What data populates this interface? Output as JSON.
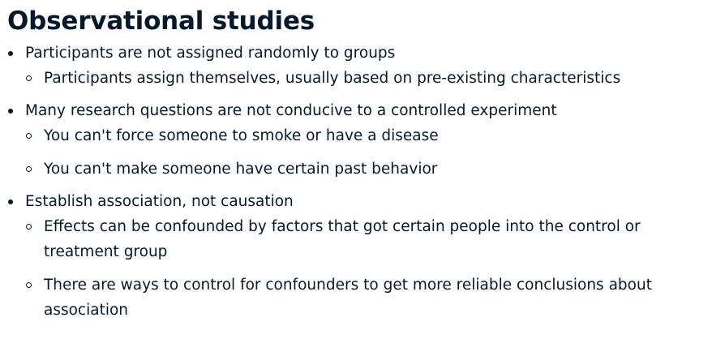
{
  "slide": {
    "title": "Observational studies",
    "bullets": [
      {
        "text": "Participants are not assigned randomly to groups",
        "sub": [
          "Participants assign themselves, usually based on pre-existing characteristics"
        ]
      },
      {
        "text": "Many research questions are not conducive to a controlled experiment",
        "sub": [
          "You can't force someone to smoke or have a disease",
          "You can't make someone have certain past behavior"
        ]
      },
      {
        "text": "Establish association, not causation",
        "sub": [
          "Effects can be confounded by factors that got certain people into the control or treatment group",
          "There are ways to control for confounders to get more reliable conclusions about association"
        ]
      }
    ]
  }
}
